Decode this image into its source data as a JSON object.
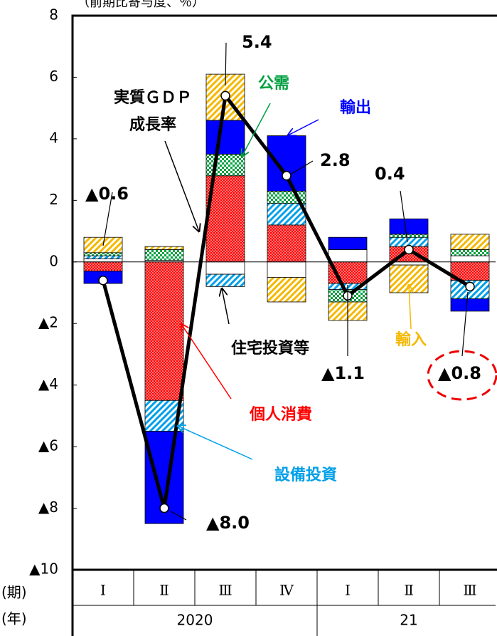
{
  "chart_data": {
    "type": "bar",
    "unit_label": "（前期比寄与度、％）",
    "categories": [
      "Ⅰ",
      "Ⅱ",
      "Ⅲ",
      "Ⅳ",
      "Ⅰ",
      "Ⅱ",
      "Ⅲ"
    ],
    "period_label": "(期)",
    "year_label": "(年)",
    "years": [
      {
        "label": "2020",
        "span": 4
      },
      {
        "label": "21",
        "span": 3
      }
    ],
    "series": [
      {
        "name": "個人消費",
        "color": "#ff0000",
        "pattern": "dots",
        "values": [
          -0.3,
          -4.5,
          2.8,
          1.2,
          -0.7,
          0.5,
          -0.6
        ]
      },
      {
        "name": "住宅投資等",
        "color": "#ffffff",
        "pattern": "solid",
        "values": [
          0.1,
          0.05,
          -0.4,
          -0.5,
          0.4,
          -0.1,
          0.2
        ]
      },
      {
        "name": "設備投資",
        "color": "#00a0e9",
        "pattern": "hatch",
        "values": [
          0.1,
          -1.0,
          -0.4,
          0.7,
          -0.2,
          0.3,
          -0.6
        ]
      },
      {
        "name": "公需",
        "color": "#00a040",
        "pattern": "checker",
        "values": [
          0.1,
          0.35,
          0.7,
          0.4,
          -0.4,
          0.1,
          0.2
        ]
      },
      {
        "name": "輸出",
        "color": "#0000ff",
        "pattern": "solid",
        "values": [
          -0.4,
          -3.0,
          1.1,
          1.8,
          0.4,
          0.5,
          -0.4
        ]
      },
      {
        "name": "輸入",
        "color": "#f5b800",
        "pattern": "hatch",
        "values": [
          0.5,
          0.1,
          1.5,
          -0.8,
          -0.6,
          -0.9,
          0.5
        ]
      }
    ],
    "line": {
      "name": [
        "実質ＧＤＰ",
        "成長率"
      ],
      "color": "#000000",
      "values": [
        -0.6,
        -8.0,
        5.4,
        2.8,
        -1.1,
        0.4,
        -0.8
      ],
      "value_labels": [
        "▲0.6",
        "▲8.0",
        "5.4",
        "2.8",
        "▲1.1",
        "0.4",
        "▲0.8"
      ]
    },
    "ylim": [
      -10,
      8
    ],
    "yticks": [
      {
        "value": -10,
        "label": "▲10"
      },
      {
        "value": -8,
        "label": "▲8"
      },
      {
        "value": -6,
        "label": "▲6"
      },
      {
        "value": -4,
        "label": "▲4"
      },
      {
        "value": -2,
        "label": "▲2"
      },
      0,
      2,
      4,
      6,
      8
    ]
  }
}
